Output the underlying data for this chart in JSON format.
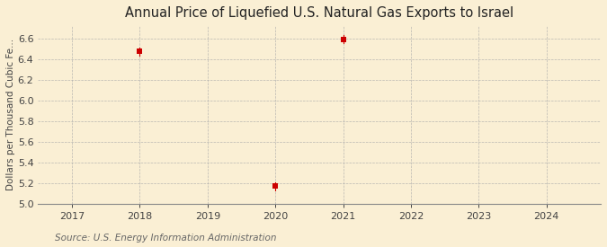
{
  "title": "Annual Price of Liquefied U.S. Natural Gas Exports to Israel",
  "ylabel": "Dollars per Thousand Cubic Fe...",
  "source": "Source: U.S. Energy Information Administration",
  "background_color": "#faefd4",
  "data_points": [
    {
      "year": 2018,
      "value": 6.47
    },
    {
      "year": 2020,
      "value": 5.17
    },
    {
      "year": 2021,
      "value": 6.59
    }
  ],
  "xlim": [
    2016.5,
    2024.8
  ],
  "ylim": [
    5.0,
    6.72
  ],
  "xticks": [
    2017,
    2018,
    2019,
    2020,
    2021,
    2022,
    2023,
    2024
  ],
  "yticks": [
    5.0,
    5.2,
    5.4,
    5.6,
    5.8,
    6.0,
    6.2,
    6.4,
    6.6
  ],
  "marker_color": "#cc0000",
  "marker_size": 18,
  "grid_color": "#aaaaaa",
  "title_fontsize": 10.5,
  "axis_fontsize": 8,
  "ylabel_fontsize": 7.5,
  "source_fontsize": 7.5
}
